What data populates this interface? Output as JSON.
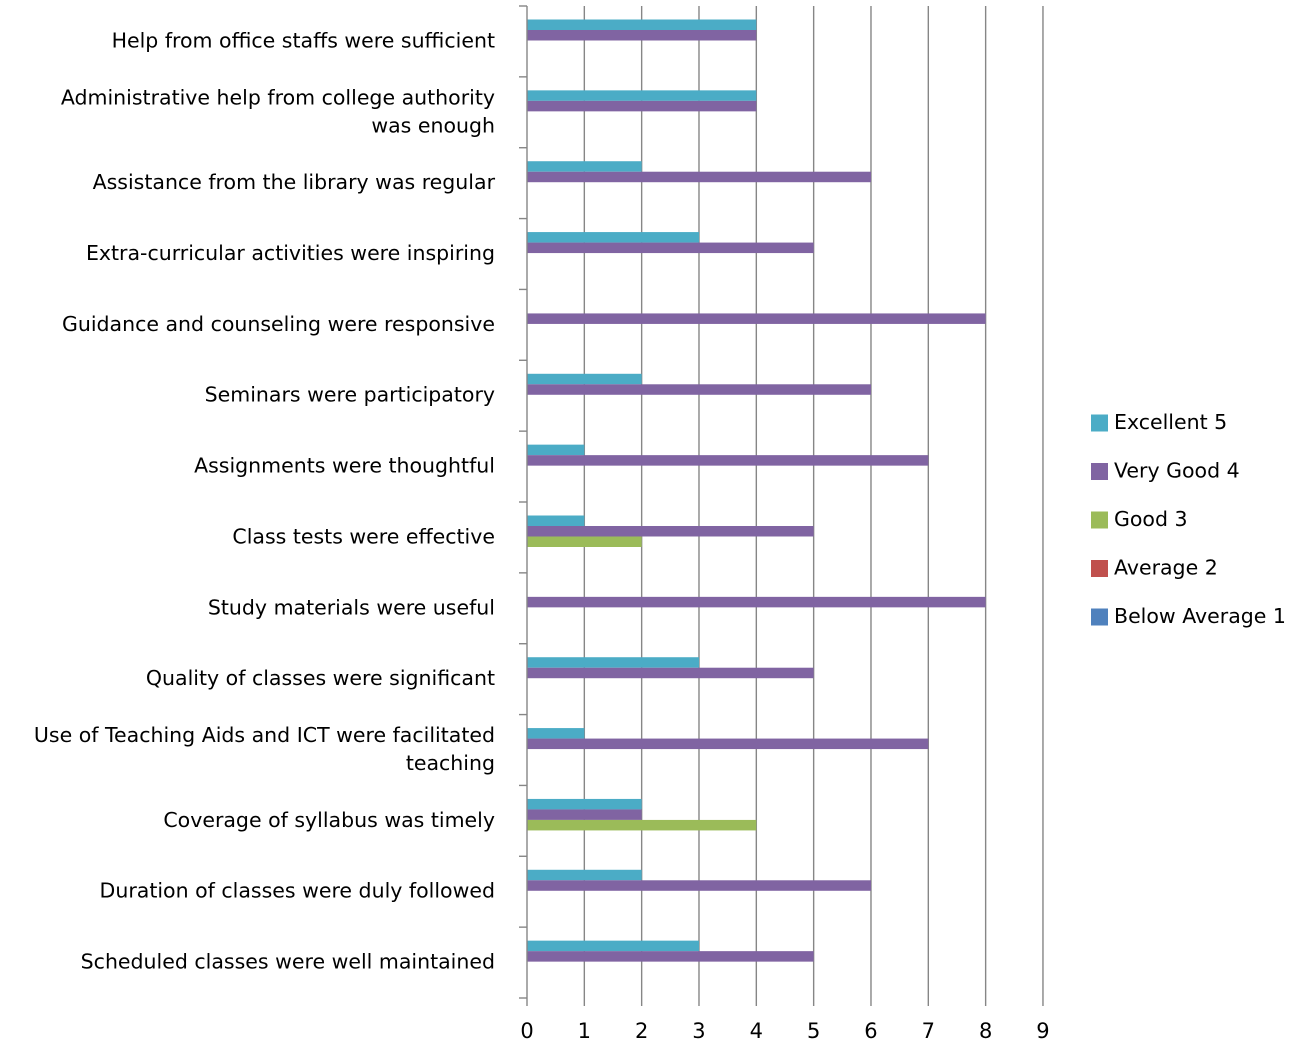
{
  "chart_data": {
    "type": "bar",
    "orientation": "horizontal",
    "title": "",
    "xlabel": "",
    "ylabel": "",
    "xlim": [
      0,
      9
    ],
    "x_ticks": [
      "0",
      "1",
      "2",
      "3",
      "4",
      "5",
      "6",
      "7",
      "8",
      "9"
    ],
    "grid": "vertical-major",
    "legend_position": "right",
    "categories_top_to_bottom": [
      {
        "lines": [
          "Help from office staffs were sufficient"
        ]
      },
      {
        "lines": [
          "Administrative help from college authority",
          "was enough"
        ]
      },
      {
        "lines": [
          "Assistance from the library was regular"
        ]
      },
      {
        "lines": [
          "Extra-curricular activities were inspiring"
        ]
      },
      {
        "lines": [
          "Guidance and counseling were responsive"
        ]
      },
      {
        "lines": [
          "Seminars were participatory"
        ]
      },
      {
        "lines": [
          "Assignments were thoughtful"
        ]
      },
      {
        "lines": [
          "Class tests were effective"
        ]
      },
      {
        "lines": [
          "Study materials were useful"
        ]
      },
      {
        "lines": [
          "Quality of classes were significant"
        ]
      },
      {
        "lines": [
          "Use of Teaching Aids and ICT were facilitated",
          "teaching"
        ]
      },
      {
        "lines": [
          "Coverage of syllabus was timely"
        ]
      },
      {
        "lines": [
          "Duration of classes were duly followed"
        ]
      },
      {
        "lines": [
          "Scheduled classes were well maintained"
        ]
      }
    ],
    "series": [
      {
        "name": "Excellent 5",
        "color": "#4BACC6",
        "values": [
          4,
          4,
          2,
          3,
          0,
          2,
          1,
          1,
          0,
          3,
          1,
          2,
          2,
          3
        ]
      },
      {
        "name": "Very Good 4",
        "color": "#8064A2",
        "values": [
          4,
          4,
          6,
          5,
          8,
          6,
          7,
          5,
          8,
          5,
          7,
          2,
          6,
          5
        ]
      },
      {
        "name": "Good 3",
        "color": "#9BBB59",
        "values": [
          0,
          0,
          0,
          0,
          0,
          0,
          0,
          2,
          0,
          0,
          0,
          4,
          0,
          0
        ]
      },
      {
        "name": "Average 2",
        "color": "#C0504D",
        "values": [
          0,
          0,
          0,
          0,
          0,
          0,
          0,
          0,
          0,
          0,
          0,
          0,
          0,
          0
        ]
      },
      {
        "name": "Below Average 1",
        "color": "#4F81BD",
        "values": [
          0,
          0,
          0,
          0,
          0,
          0,
          0,
          0,
          0,
          0,
          0,
          0,
          0,
          0
        ]
      }
    ],
    "colors": {
      "gridline": "#868686",
      "axis": "#868686"
    }
  }
}
